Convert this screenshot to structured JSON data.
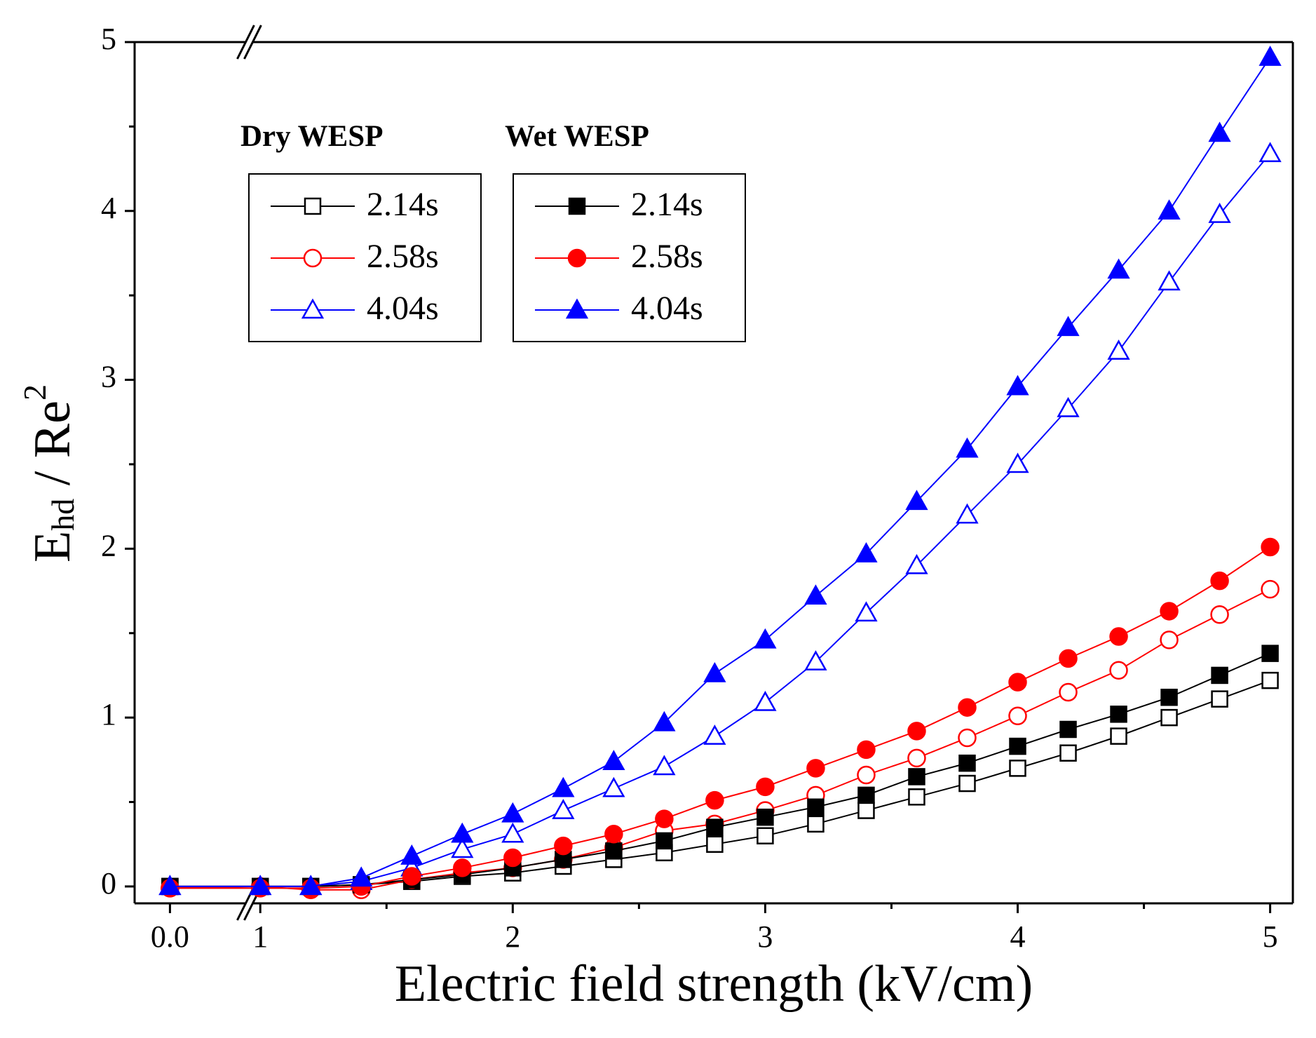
{
  "chart_data": {
    "type": "line",
    "xlabel": "Electric  field strength (kV/cm)",
    "ylabel": {
      "parts": [
        "E",
        "hd",
        " / Re",
        "2"
      ]
    },
    "x": [
      0,
      1,
      1.2,
      1.4,
      1.6,
      1.8,
      2.0,
      2.2,
      2.4,
      2.6,
      2.8,
      3.0,
      3.2,
      3.4,
      3.6,
      3.8,
      4.0,
      4.2,
      4.4,
      4.6,
      4.8,
      5.0
    ],
    "xlim": [
      -0.14,
      5.09
    ],
    "xbreak": [
      0.3,
      0.97
    ],
    "xticks": [
      {
        "value": 0,
        "label": "0.0"
      },
      1,
      2,
      3,
      4,
      5
    ],
    "xminorticks": [
      1.5,
      2.5,
      3.5,
      4.5
    ],
    "ylim": [
      -0.1,
      5
    ],
    "yticks": [
      0,
      1,
      2,
      3,
      4,
      5
    ],
    "yminorticks": [
      0.5,
      1.5,
      2.5,
      3.5,
      4.5
    ],
    "series": [
      {
        "name": "2.14s",
        "group": "Dry WESP",
        "color": "#000000",
        "marker": "square",
        "filled": false,
        "values": [
          0,
          0,
          0,
          0.01,
          0.03,
          0.06,
          0.08,
          0.12,
          0.16,
          0.2,
          0.25,
          0.3,
          0.37,
          0.45,
          0.53,
          0.61,
          0.7,
          0.79,
          0.89,
          1.0,
          1.11,
          1.22
        ]
      },
      {
        "name": "2.58s",
        "group": "Dry WESP",
        "color": "#ff0000",
        "marker": "circle",
        "filled": false,
        "values": [
          -0.01,
          0,
          -0.02,
          -0.02,
          0.04,
          0.08,
          0.11,
          0.16,
          0.23,
          0.33,
          0.37,
          0.45,
          0.54,
          0.66,
          0.76,
          0.88,
          1.01,
          1.15,
          1.28,
          1.46,
          1.61,
          1.76
        ]
      },
      {
        "name": "4.04s",
        "group": "Dry WESP",
        "color": "#0000ff",
        "marker": "triangle",
        "filled": false,
        "values": [
          0,
          0,
          0,
          0.03,
          0.11,
          0.22,
          0.31,
          0.45,
          0.58,
          0.71,
          0.89,
          1.09,
          1.33,
          1.62,
          1.9,
          2.2,
          2.5,
          2.83,
          3.17,
          3.58,
          3.98,
          4.34
        ]
      },
      {
        "name": "2.14s",
        "group": "Wet WESP",
        "color": "#000000",
        "marker": "square",
        "filled": true,
        "values": [
          0,
          0,
          0,
          0.01,
          0.04,
          0.07,
          0.11,
          0.16,
          0.21,
          0.27,
          0.35,
          0.41,
          0.47,
          0.54,
          0.65,
          0.73,
          0.83,
          0.93,
          1.02,
          1.12,
          1.25,
          1.38
        ]
      },
      {
        "name": "2.58s",
        "group": "Wet WESP",
        "color": "#ff0000",
        "marker": "circle",
        "filled": true,
        "values": [
          -0.01,
          -0.01,
          -0.01,
          0,
          0.06,
          0.11,
          0.17,
          0.24,
          0.31,
          0.4,
          0.51,
          0.59,
          0.7,
          0.81,
          0.92,
          1.06,
          1.21,
          1.35,
          1.48,
          1.63,
          1.81,
          2.01
        ]
      },
      {
        "name": "4.04s",
        "group": "Wet WESP",
        "color": "#0000ff",
        "marker": "triangle",
        "filled": true,
        "values": [
          0,
          0,
          0,
          0.05,
          0.18,
          0.31,
          0.43,
          0.58,
          0.74,
          0.97,
          1.26,
          1.46,
          1.72,
          1.97,
          2.28,
          2.59,
          2.96,
          3.31,
          3.65,
          4.0,
          4.46,
          4.91
        ]
      }
    ]
  }
}
